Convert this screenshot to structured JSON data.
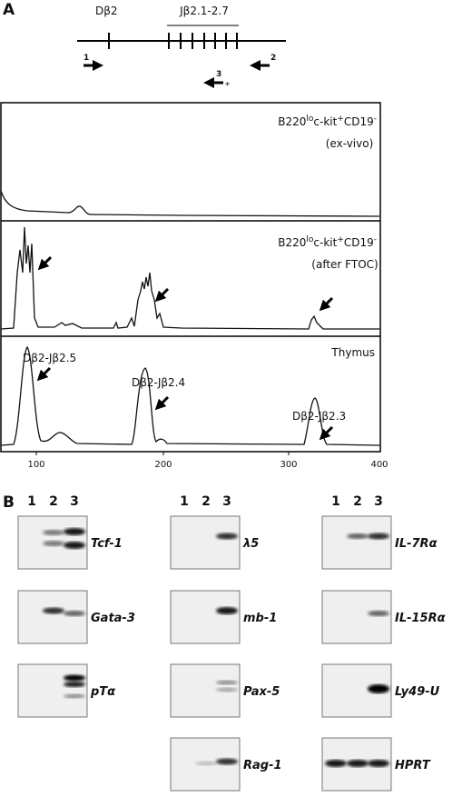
{
  "panel_a": {
    "label": "A",
    "diagram": {
      "d_label": "Dβ2",
      "j_label": "Jβ2.1-2.7",
      "primers": [
        "1",
        "2",
        "3"
      ],
      "star": "*"
    },
    "traces": [
      {
        "cell": [
          "B220",
          "lo",
          "c-kit",
          "+",
          "CD19",
          "-"
        ],
        "condition": "(ex-vivo)"
      },
      {
        "cell": [
          "B220",
          "lo",
          "c-kit",
          "+",
          "CD19",
          "-"
        ],
        "condition": "(after FTOC)"
      },
      {
        "cell": [
          "Thymus"
        ]
      }
    ],
    "annotations": [
      "Dβ2-Jβ2.5",
      "Dβ2-Jβ2.4",
      "Dβ2-Jβ2.3"
    ],
    "x_ticks": [
      "100",
      "200",
      "300",
      "400"
    ]
  },
  "panel_b": {
    "label": "B",
    "lanes": [
      "1",
      "2",
      "3"
    ],
    "genes": [
      [
        "Tcf-1",
        "Gata-3",
        "pTα"
      ],
      [
        "λ5",
        "mb-1",
        "Pax-5",
        "Rag-1"
      ],
      [
        "IL-7Rα",
        "IL-15Rα",
        "Ly49-U",
        "HPRT"
      ]
    ]
  }
}
